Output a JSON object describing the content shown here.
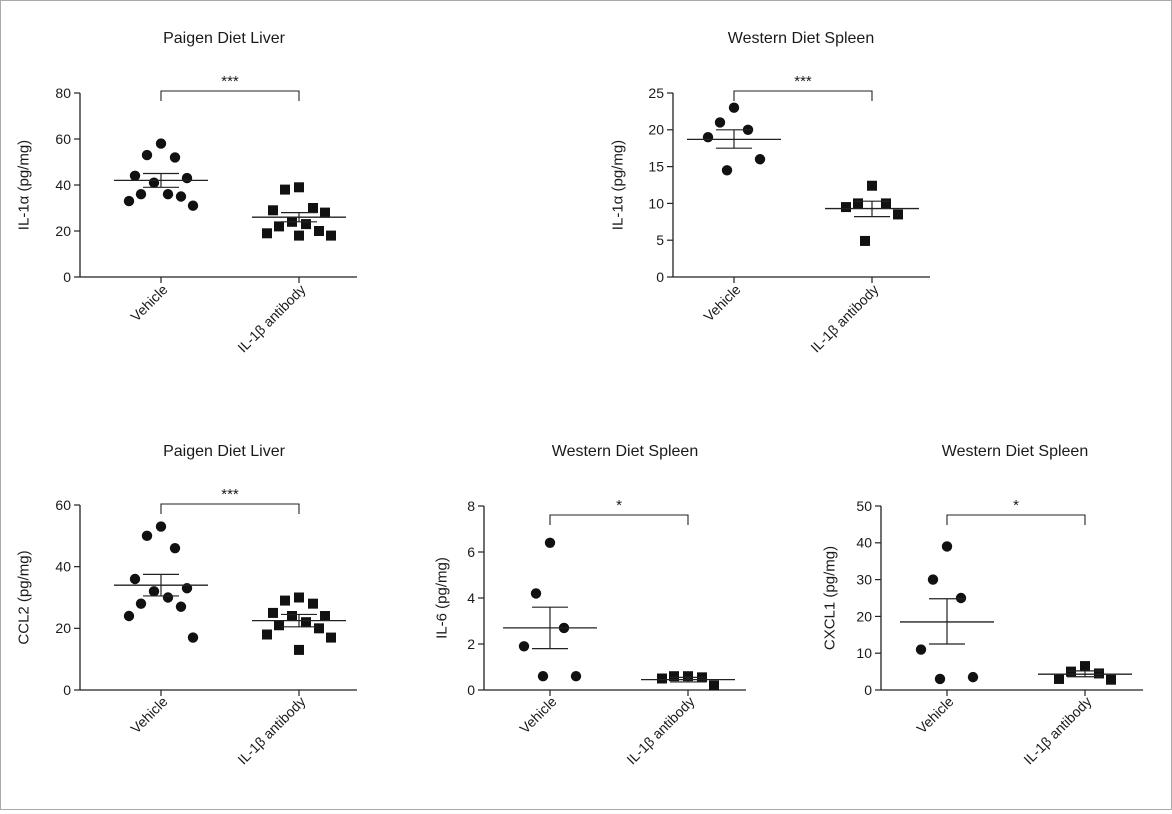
{
  "chart_data": [
    {
      "type": "scatter",
      "title": "Paigen Diet Liver",
      "ylabel": "IL-1α (pg/mg)",
      "xlabel": "",
      "ylim": [
        0,
        80
      ],
      "yticks": [
        0,
        20,
        40,
        60,
        80
      ],
      "categories": [
        "Vehicle",
        "IL-1β antibody"
      ],
      "significance": "***",
      "groups": [
        {
          "marker": "circle",
          "values": [
            58,
            53,
            52,
            44,
            43,
            41,
            36,
            36,
            35,
            33,
            31
          ],
          "mean": 42,
          "sem_low": 39,
          "sem_high": 45
        },
        {
          "marker": "square",
          "values": [
            39,
            38,
            30,
            29,
            28,
            24,
            23,
            22,
            20,
            19,
            18,
            18
          ],
          "mean": 26,
          "sem_low": 24,
          "sem_high": 28
        }
      ]
    },
    {
      "type": "scatter",
      "title": "Western Diet Spleen",
      "ylabel": "IL-1α (pg/mg)",
      "xlabel": "",
      "ylim": [
        0,
        25
      ],
      "yticks": [
        0,
        5,
        10,
        15,
        20,
        25
      ],
      "categories": [
        "Vehicle",
        "IL-1β antibody"
      ],
      "significance": "***",
      "groups": [
        {
          "marker": "circle",
          "values": [
            23,
            21,
            20,
            19,
            16,
            14.5
          ],
          "mean": 18.7,
          "sem_low": 17.5,
          "sem_high": 20
        },
        {
          "marker": "square",
          "values": [
            12.4,
            10,
            10,
            9.5,
            8.5,
            4.9
          ],
          "mean": 9.3,
          "sem_low": 8.2,
          "sem_high": 10.3
        }
      ]
    },
    {
      "type": "scatter",
      "title": "Paigen Diet Liver",
      "ylabel": "CCL2 (pg/mg)",
      "xlabel": "",
      "ylim": [
        0,
        60
      ],
      "yticks": [
        0,
        20,
        40,
        60
      ],
      "categories": [
        "Vehicle",
        "IL-1β antibody"
      ],
      "significance": "***",
      "groups": [
        {
          "marker": "circle",
          "values": [
            53,
            50,
            46,
            36,
            33,
            32,
            30,
            28,
            27,
            24,
            17
          ],
          "mean": 34,
          "sem_low": 30.5,
          "sem_high": 37.5
        },
        {
          "marker": "square",
          "values": [
            30,
            29,
            28,
            25,
            24,
            24,
            22,
            21,
            20,
            18,
            17,
            13
          ],
          "mean": 22.5,
          "sem_low": 20.5,
          "sem_high": 24.5
        }
      ]
    },
    {
      "type": "scatter",
      "title": "Western Diet Spleen",
      "ylabel": "IL-6 (pg/mg)",
      "xlabel": "",
      "ylim": [
        0,
        8
      ],
      "yticks": [
        0,
        2,
        4,
        6,
        8
      ],
      "categories": [
        "Vehicle",
        "IL-1β antibody"
      ],
      "significance": "*",
      "groups": [
        {
          "marker": "circle",
          "values": [
            6.4,
            4.2,
            2.7,
            1.9,
            0.6,
            0.6
          ],
          "mean": 2.7,
          "sem_low": 1.8,
          "sem_high": 3.6
        },
        {
          "marker": "square",
          "values": [
            0.6,
            0.6,
            0.55,
            0.5,
            0.2
          ],
          "mean": 0.45,
          "sem_low": 0.35,
          "sem_high": 0.55
        }
      ]
    },
    {
      "type": "scatter",
      "title": "Western Diet Spleen",
      "ylabel": "CXCL1 (pg/mg)",
      "xlabel": "",
      "ylim": [
        0,
        50
      ],
      "yticks": [
        0,
        10,
        20,
        30,
        40,
        50
      ],
      "categories": [
        "Vehicle",
        "IL-1β antibody"
      ],
      "significance": "*",
      "groups": [
        {
          "marker": "circle",
          "values": [
            39,
            30,
            25,
            11,
            3.5,
            3
          ],
          "mean": 18.5,
          "sem_low": 12.5,
          "sem_high": 24.8
        },
        {
          "marker": "square",
          "values": [
            6.5,
            5,
            4.5,
            3,
            2.8
          ],
          "mean": 4.3,
          "sem_low": 3.6,
          "sem_high": 5.2
        }
      ]
    }
  ]
}
